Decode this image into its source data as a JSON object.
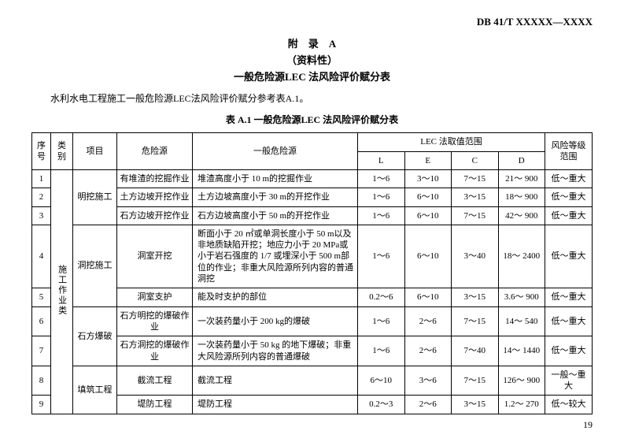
{
  "doc_code": "DB 41/T XXXXX—XXXX",
  "appendix_label": "附　录　A",
  "appendix_nature": "（资料性）",
  "appendix_title": "一般危险源LEC 法风险评价赋分表",
  "intro": "水利水电工程施工一般危险源LEC法风险评价赋分参考表A.1。",
  "table_caption": "表 A.1 一般危险源LEC 法风险评价赋分表",
  "headers": {
    "seq": "序号",
    "category": "类别",
    "project": "项目",
    "hazard_source": "危险源",
    "general_hazard": "一般危险源",
    "lec_group": "LEC 法取值范围",
    "L": "L",
    "E": "E",
    "C": "C",
    "D": "D",
    "risk_level": "风险等级范围"
  },
  "category_vertical": "施工作业类",
  "projects": {
    "p1": "明挖施工",
    "p2": "洞挖施工",
    "p3": "石方爆破",
    "p4": "填筑工程"
  },
  "rows": [
    {
      "seq": "1",
      "src": "有堆渣的挖掘作业",
      "gen": "堆渣高度小于 10 m的挖掘作业",
      "L": "1～6",
      "E": "3～10",
      "C": "7～15",
      "D": "21～ 900",
      "risk": "低～重大"
    },
    {
      "seq": "2",
      "src": "土方边坡开挖作业",
      "gen": "土方边坡高度小于 30 m的开挖作业",
      "L": "1～6",
      "E": "6～10",
      "C": "3～15",
      "D": "18～ 900",
      "risk": "低～重大"
    },
    {
      "seq": "3",
      "src": "石方边坡开挖作业",
      "gen": "石方边坡高度小于 50 m的开挖作业",
      "L": "1～6",
      "E": "6～10",
      "C": "7～15",
      "D": "42～ 900",
      "risk": "低～重大"
    },
    {
      "seq": "4",
      "src": "洞室开挖",
      "gen": "断面小于 20 ㎡或单洞长度小于 50 m以及非地质缺陷开挖；地应力小于 20 MPa或小于岩石强度的 1/7 或埋深小于 500 m部位的作业；非重大风险源所列内容的普通洞挖",
      "L": "1～6",
      "E": "6～10",
      "C": "3～40",
      "D": "18～ 2400",
      "risk": "低～重大"
    },
    {
      "seq": "5",
      "src": "洞室支护",
      "gen": "能及时支护的部位",
      "L": "0.2～6",
      "E": "6～10",
      "C": "3～15",
      "D": "3.6～ 900",
      "risk": "低～重大"
    },
    {
      "seq": "6",
      "src": "石方明挖的爆破作业",
      "gen": "一次装药量小于 200 kg的爆破",
      "L": "1～6",
      "E": "2～6",
      "C": "7～15",
      "D": "14～ 540",
      "risk": "低～重大"
    },
    {
      "seq": "7",
      "src": "石方洞挖的爆破作业",
      "gen": "一次装药量小于 50 kg 的地下爆破；非重大风险源所列内容的普通爆破",
      "L": "1～6",
      "E": "2～6",
      "C": "7～40",
      "D": "14～ 1440",
      "risk": "低～重大"
    },
    {
      "seq": "8",
      "src": "截流工程",
      "gen": "截流工程",
      "L": "6～10",
      "E": "3～6",
      "C": "7～15",
      "D": "126～ 900",
      "risk": "一般～重大"
    },
    {
      "seq": "9",
      "src": "堤防工程",
      "gen": "堤防工程",
      "L": "0.2～3",
      "E": "2～6",
      "C": "3～15",
      "D": "1.2～ 270",
      "risk": "低～较大"
    }
  ],
  "page_no": "19"
}
